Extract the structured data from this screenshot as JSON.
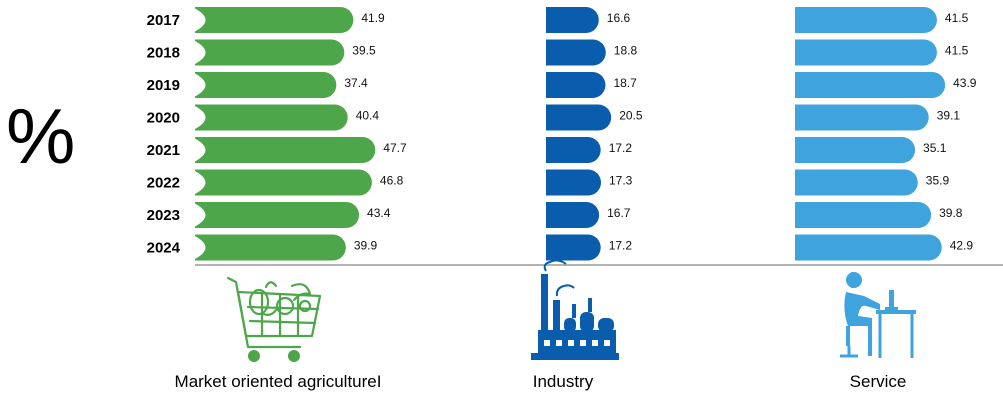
{
  "chart_data": {
    "type": "bar",
    "orientation": "horizontal",
    "unit_symbol": "%",
    "categories": [
      "2017",
      "2018",
      "2019",
      "2020",
      "2021",
      "2022",
      "2023",
      "2024"
    ],
    "series": [
      {
        "name": "Market oriented agricultureI",
        "icon": "shopping-cart-produce-icon",
        "color": "#4ea64a",
        "values": [
          41.9,
          39.5,
          37.4,
          40.4,
          47.7,
          46.8,
          43.4,
          39.9
        ]
      },
      {
        "name": "Industry",
        "icon": "factory-icon",
        "color": "#0a5cad",
        "values": [
          16.6,
          18.8,
          18.7,
          20.5,
          17.2,
          17.3,
          16.7,
          17.2
        ]
      },
      {
        "name": "Service",
        "icon": "office-worker-desk-icon",
        "color": "#3fa3de",
        "values": [
          41.5,
          41.5,
          43.9,
          39.1,
          35.1,
          35.9,
          39.8,
          42.9
        ]
      }
    ],
    "grid": false,
    "legend": "none"
  }
}
